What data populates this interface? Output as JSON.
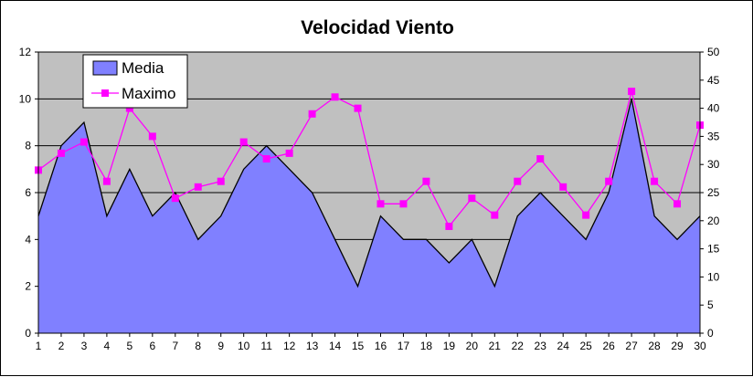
{
  "chart_data": {
    "type": "area",
    "title": "Velocidad Viento",
    "x": [
      1,
      2,
      3,
      4,
      5,
      6,
      7,
      8,
      9,
      10,
      11,
      12,
      13,
      14,
      15,
      16,
      17,
      18,
      19,
      20,
      21,
      22,
      23,
      24,
      25,
      26,
      27,
      28,
      29,
      30
    ],
    "series": [
      {
        "name": "Media",
        "type": "area",
        "axis": "left",
        "values": [
          5,
          8,
          9,
          5,
          7,
          5,
          6,
          4,
          5,
          7,
          8,
          7,
          6,
          4,
          2,
          5,
          4,
          4,
          3,
          4,
          2,
          5,
          6,
          5,
          4,
          6,
          10,
          5,
          4,
          5
        ]
      },
      {
        "name": "Maximo",
        "type": "line",
        "axis": "right",
        "values": [
          29,
          32,
          34,
          27,
          40,
          35,
          24,
          26,
          27,
          34,
          31,
          32,
          39,
          42,
          40,
          23,
          23,
          27,
          19,
          24,
          21,
          27,
          31,
          26,
          21,
          27,
          43,
          27,
          23,
          37
        ]
      }
    ],
    "ylim_left": [
      0,
      12
    ],
    "yticks_left": [
      0,
      2,
      4,
      6,
      8,
      10,
      12
    ],
    "ylim_right": [
      0,
      50
    ],
    "yticks_right": [
      0,
      5,
      10,
      15,
      20,
      25,
      30,
      35,
      40,
      45,
      50
    ],
    "grid": true,
    "legend_position": "top-left",
    "colors": {
      "plot_background": "#c0c0c0",
      "area_fill": "#8080ff",
      "area_stroke": "#000000",
      "line": "#ff00ff",
      "marker": "#ff00ff",
      "grid": "#000000"
    }
  }
}
